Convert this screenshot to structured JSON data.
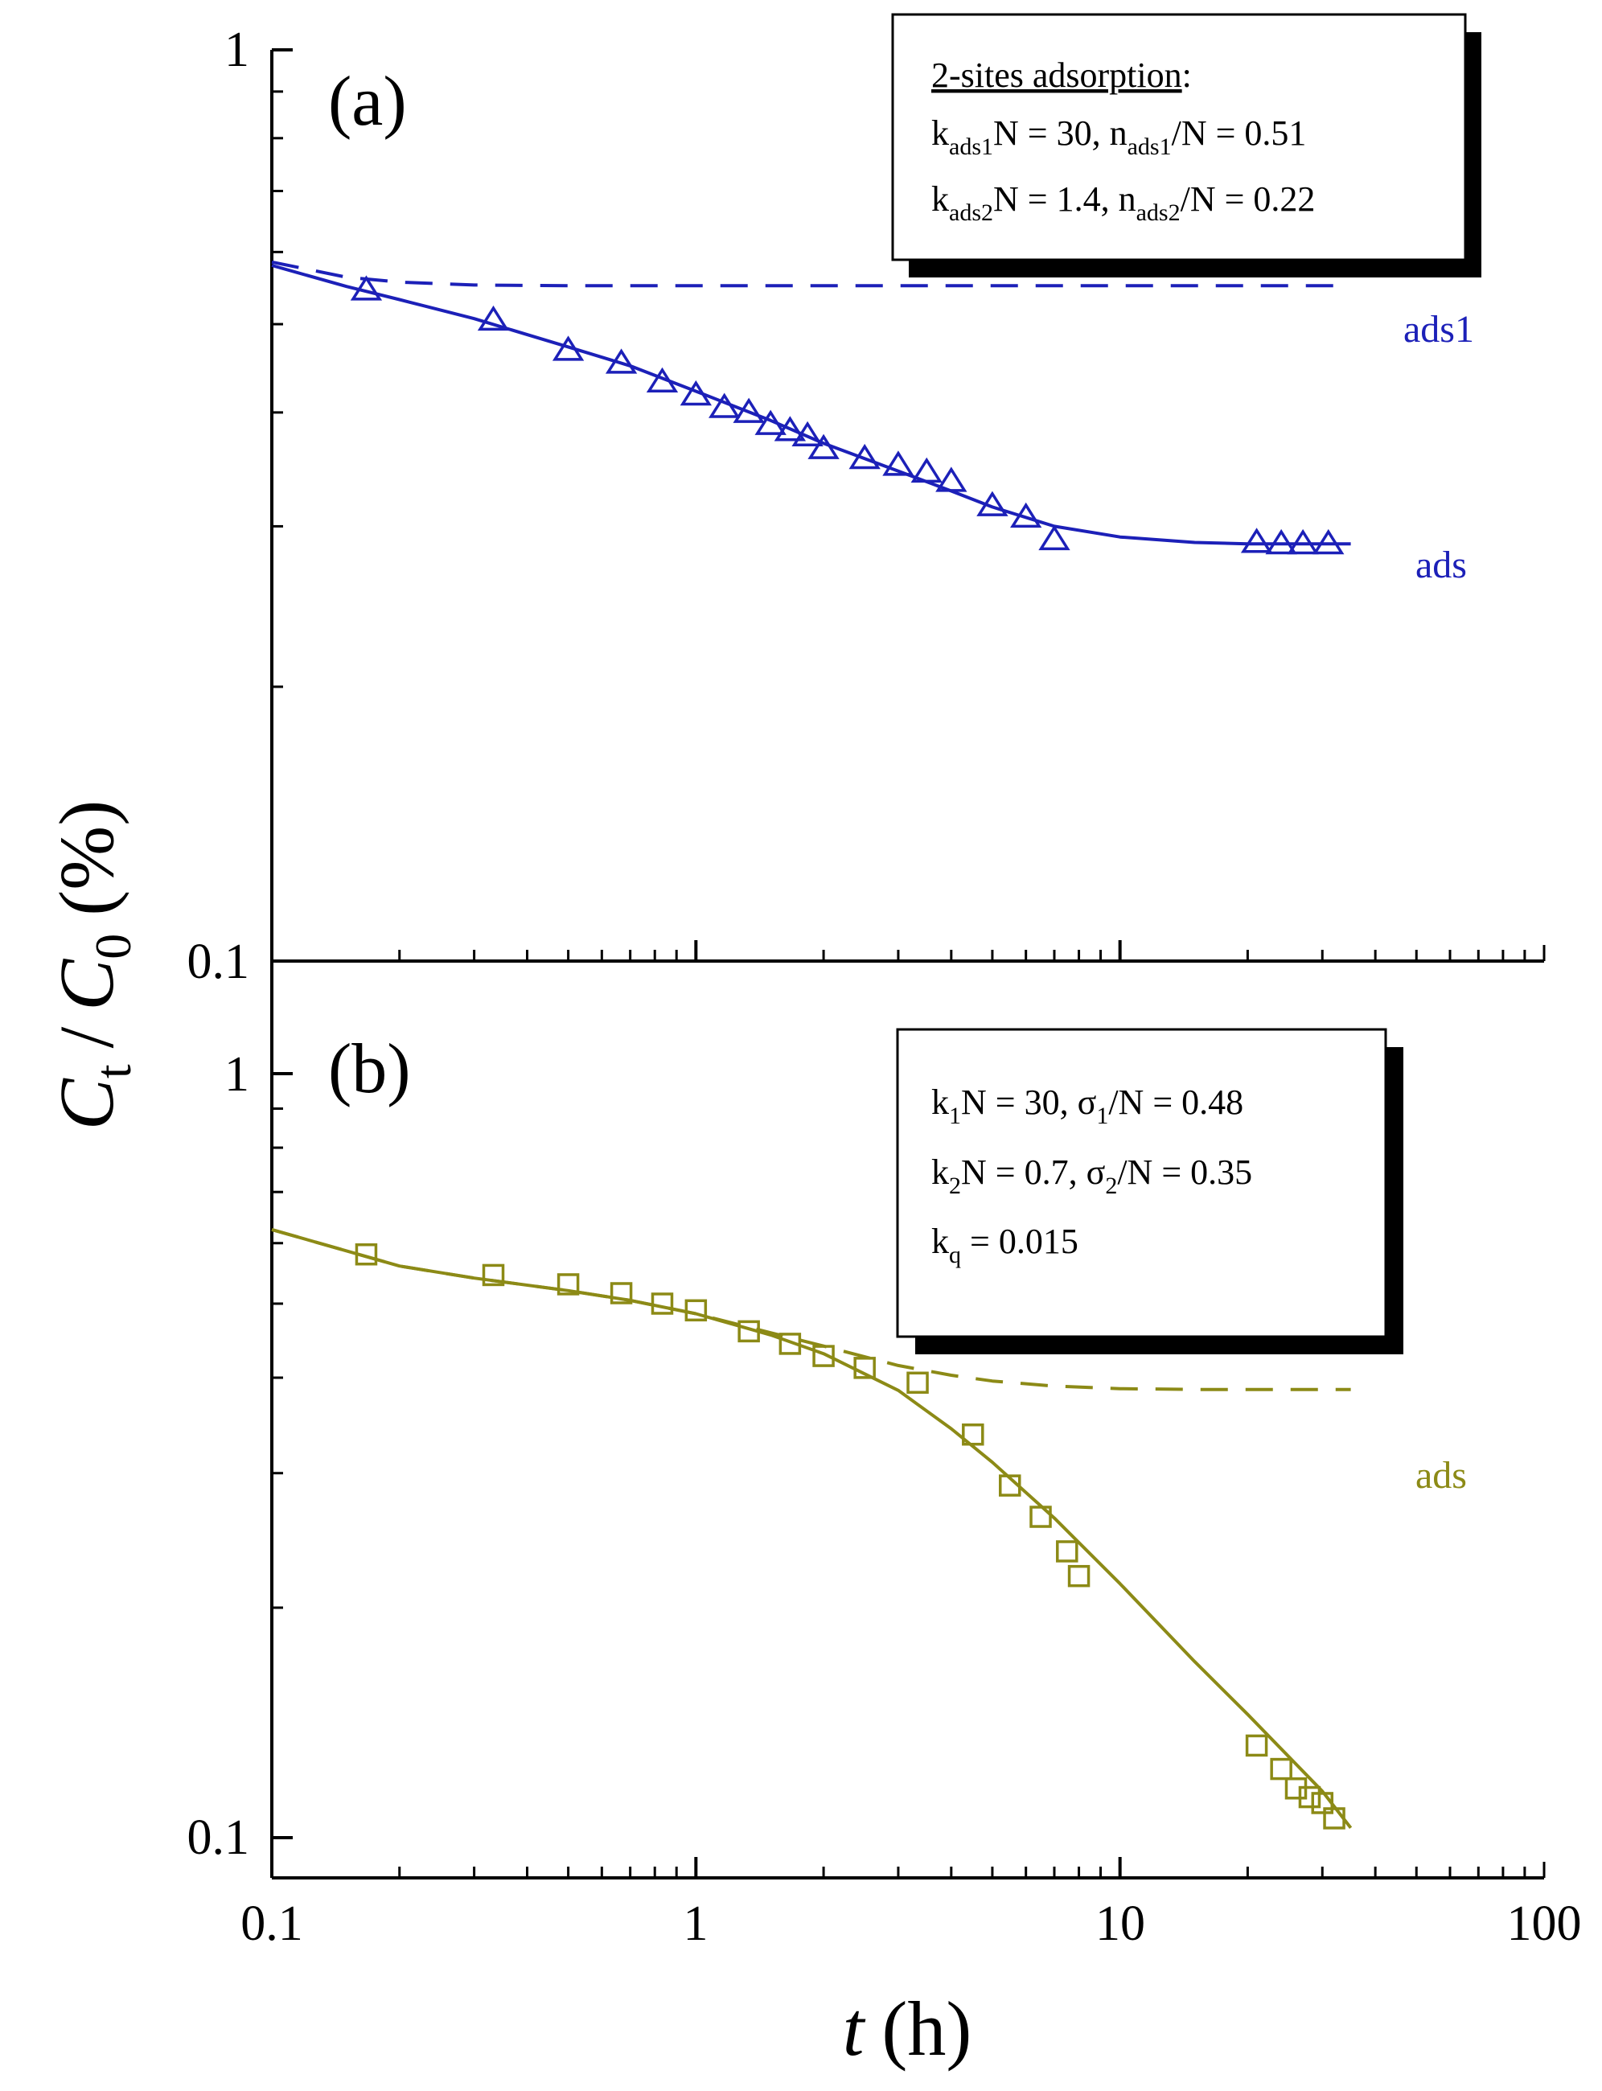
{
  "colors": {
    "panel_a": "#1c20b8",
    "panel_b": "#8c8a16",
    "axis": "#000000",
    "box_shadow": "#000000"
  },
  "x_axis": {
    "title_var": "t",
    "title_unit": "(h)",
    "scale": "log",
    "range": [
      0.1,
      100
    ],
    "tick_labels": [
      "0.1",
      "1",
      "10",
      "100"
    ]
  },
  "y_axis": {
    "title_c1": "C",
    "title_sub1": "t",
    "title_slash": "/",
    "title_c2": "C",
    "title_sub2": "0",
    "title_unit": "(%)"
  },
  "panels": [
    {
      "label": "(a)",
      "y_tick_labels": [
        "0.1",
        "1"
      ],
      "box": {
        "heading": "2-sites adsorption",
        "heading_colon": ":",
        "lines": [
          [
            {
              "t": "k"
            },
            {
              "t": "ads1",
              "sub": true
            },
            {
              "t": "N = 30, n"
            },
            {
              "t": "ads1",
              "sub": true
            },
            {
              "t": "/N = 0.51"
            }
          ],
          [
            {
              "t": "k"
            },
            {
              "t": "ads2",
              "sub": true
            },
            {
              "t": "N = 1.4, n"
            },
            {
              "t": "ads2",
              "sub": true
            },
            {
              "t": "/N = 0.22"
            }
          ]
        ]
      },
      "curve_labels": [
        "ads1",
        "ads"
      ]
    },
    {
      "label": "(b)",
      "y_tick_labels": [
        "0.1",
        "1"
      ],
      "box": {
        "lines": [
          [
            {
              "t": "k"
            },
            {
              "t": "1",
              "sub": true
            },
            {
              "t": "N = 30, σ"
            },
            {
              "t": "1",
              "sub": true
            },
            {
              "t": "/N = 0.48"
            }
          ],
          [
            {
              "t": "k"
            },
            {
              "t": "2",
              "sub": true
            },
            {
              "t": "N = 0.7, σ"
            },
            {
              "t": "2",
              "sub": true
            },
            {
              "t": "/N = 0.35"
            }
          ],
          [
            {
              "t": "k"
            },
            {
              "t": "q",
              "sub": true
            },
            {
              "t": " = 0.015"
            }
          ]
        ]
      },
      "curve_labels": [
        "ads"
      ]
    }
  ],
  "chart_data": [
    {
      "type": "scatter",
      "panel": "(a)",
      "x_scale": "log",
      "y_scale": "log",
      "xlim": [
        0.1,
        100
      ],
      "ylim": [
        0.1,
        1
      ],
      "xlabel": "t (h)",
      "ylabel": "Ct / C0 (%)",
      "marker": "triangle",
      "series": [
        {
          "name": "ads",
          "kind": "markers",
          "x": [
            0.167,
            0.333,
            0.5,
            0.667,
            0.833,
            1.0,
            1.167,
            1.333,
            1.5,
            1.667,
            1.833,
            2.0,
            2.5,
            3.0,
            3.5,
            4.0,
            5.0,
            6.0,
            7.0,
            21.0,
            24.0,
            27.0,
            31.0
          ],
          "y": [
            0.545,
            0.505,
            0.468,
            0.453,
            0.432,
            0.418,
            0.405,
            0.4,
            0.388,
            0.382,
            0.377,
            0.365,
            0.356,
            0.35,
            0.344,
            0.336,
            0.316,
            0.307,
            0.29,
            0.288,
            0.287,
            0.287,
            0.287
          ]
        },
        {
          "name": "ads",
          "kind": "line-solid",
          "x": [
            0.1,
            0.15,
            0.2,
            0.3,
            0.5,
            0.7,
            1.0,
            1.5,
            2.0,
            3.0,
            4.0,
            5.0,
            7.0,
            10.0,
            15.0,
            20.0,
            35.0
          ],
          "y": [
            0.58,
            0.55,
            0.532,
            0.507,
            0.472,
            0.45,
            0.422,
            0.392,
            0.37,
            0.345,
            0.328,
            0.315,
            0.3,
            0.292,
            0.288,
            0.287,
            0.287
          ]
        },
        {
          "name": "ads1",
          "kind": "line-dashed",
          "x": [
            0.1,
            0.15,
            0.2,
            0.3,
            0.5,
            1.0,
            35.0
          ],
          "y": [
            0.585,
            0.563,
            0.556,
            0.552,
            0.551,
            0.551,
            0.551
          ]
        }
      ]
    },
    {
      "type": "scatter",
      "panel": "(b)",
      "x_scale": "log",
      "y_scale": "log",
      "xlim": [
        0.1,
        100
      ],
      "ylim": [
        0.09,
        1
      ],
      "xlabel": "t (h)",
      "ylabel": "Ct / C0 (%)",
      "marker": "square",
      "series": [
        {
          "name": "",
          "kind": "markers",
          "x": [
            0.167,
            0.333,
            0.5,
            0.667,
            0.833,
            1.0,
            1.333,
            1.667,
            2.0,
            2.5,
            3.333,
            4.5,
            5.5,
            6.5,
            7.5,
            8.0,
            21.0,
            24.0,
            26.0,
            28.0,
            30.0,
            32.0
          ],
          "y": [
            0.58,
            0.545,
            0.53,
            0.516,
            0.5,
            0.49,
            0.46,
            0.443,
            0.427,
            0.412,
            0.394,
            0.337,
            0.289,
            0.263,
            0.237,
            0.22,
            0.132,
            0.123,
            0.116,
            0.113,
            0.111,
            0.106
          ]
        },
        {
          "name": "",
          "kind": "line-solid",
          "x": [
            0.1,
            0.2,
            0.3,
            0.5,
            0.7,
            1.0,
            1.5,
            2.0,
            3.0,
            4.0,
            5.0,
            7.0,
            10.0,
            15.0,
            20.0,
            30.0,
            35.0
          ],
          "y": [
            0.625,
            0.56,
            0.54,
            0.52,
            0.505,
            0.485,
            0.455,
            0.43,
            0.385,
            0.343,
            0.31,
            0.262,
            0.215,
            0.17,
            0.145,
            0.115,
            0.103
          ]
        },
        {
          "name": "ads",
          "kind": "line-dashed",
          "x": [
            0.1,
            0.2,
            0.3,
            0.5,
            0.7,
            1.0,
            1.5,
            2.0,
            3.0,
            4.0,
            5.0,
            7.0,
            10.0,
            15.0,
            20.0,
            35.0
          ],
          "y": [
            0.625,
            0.56,
            0.54,
            0.52,
            0.505,
            0.485,
            0.458,
            0.44,
            0.415,
            0.403,
            0.396,
            0.39,
            0.387,
            0.386,
            0.386,
            0.386
          ]
        }
      ]
    }
  ]
}
